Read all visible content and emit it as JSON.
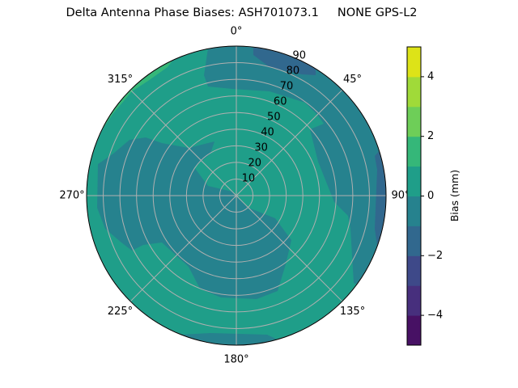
{
  "chart_data": {
    "type": "polar-contour",
    "title": "Delta Antenna Phase Biases: ASH701073.1     NONE GPS-L2",
    "theta_labels": [
      "0°",
      "45°",
      "90°",
      "135°",
      "180°",
      "225°",
      "270°",
      "315°"
    ],
    "theta_direction": "clockwise",
    "theta_zero": "north",
    "radial_ticks": [
      10,
      20,
      30,
      40,
      50,
      60,
      70,
      80,
      90
    ],
    "radial_range": [
      0,
      90
    ],
    "grid": true,
    "colorbar": {
      "label": "Bias (mm)",
      "levels": [
        -5,
        -4,
        -3,
        -2,
        -1,
        0,
        1,
        2,
        3,
        4,
        5
      ],
      "ticks": [
        -4,
        -2,
        0,
        2,
        4
      ],
      "tick_labels": [
        "−4",
        "−2",
        "0",
        "2",
        "4"
      ],
      "colormap": "viridis",
      "colors": [
        "#471164",
        "#472f7d",
        "#3e4989",
        "#31688e",
        "#26828e",
        "#1f9e89",
        "#35b779",
        "#6ece58",
        "#a0da39",
        "#dde318"
      ]
    },
    "regions": [
      {
        "name": "background",
        "range": [
          0,
          1
        ],
        "location": "most of disk"
      },
      {
        "name": "north-east rim band",
        "range": [
          -1,
          0
        ],
        "location": "north blob and east rim from 0° to ~140°"
      },
      {
        "name": "central lobe",
        "range": [
          -1,
          0
        ],
        "location": "center extending west and south"
      },
      {
        "name": "south rim",
        "range": [
          -1,
          0
        ],
        "location": "south rim"
      },
      {
        "name": "north-east rim low",
        "range": [
          -2,
          -1
        ],
        "location": "near 15°-35° rim"
      },
      {
        "name": "east rim low",
        "range": [
          -2,
          -1
        ],
        "location": "east rim 75°-105°"
      },
      {
        "name": "north-west rim high",
        "range": [
          1,
          2
        ],
        "location": "315°-340° rim"
      }
    ]
  }
}
